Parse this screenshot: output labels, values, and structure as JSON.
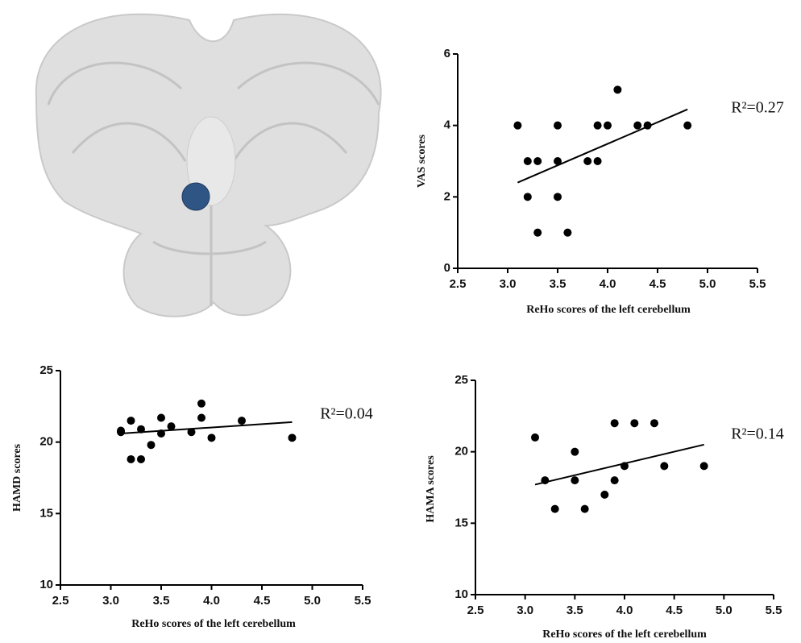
{
  "chart_data": [
    {
      "type": "scatter",
      "x_label": "ReHo scores of the left cerebellum",
      "y_label": "VAS scores",
      "annotation": "R²=0.27",
      "x": [
        3.1,
        3.2,
        3.2,
        3.3,
        3.3,
        3.5,
        3.5,
        3.5,
        3.6,
        3.8,
        3.9,
        3.9,
        4.0,
        4.1,
        4.3,
        4.4,
        4.8
      ],
      "values": [
        4,
        3,
        2,
        3,
        1,
        4,
        3,
        2,
        1,
        3,
        4,
        3,
        4,
        5,
        4,
        4,
        4
      ],
      "fit_line": {
        "x": [
          3.1,
          4.8
        ],
        "y": [
          2.4,
          4.45
        ]
      },
      "color": "#000000",
      "xlim": [
        2.5,
        5.5
      ],
      "xticks": [
        2.5,
        {
          "value": 3,
          "label": "3.0"
        },
        3.5,
        {
          "value": 4,
          "label": "4.0"
        },
        4.5,
        {
          "value": 5,
          "label": "5.0"
        },
        5.5
      ],
      "ylim": [
        0,
        6
      ],
      "yticks": [
        0,
        2,
        4,
        6
      ]
    },
    {
      "type": "scatter",
      "x_label": "ReHo scores of the left cerebellum",
      "y_label": "HAMD scores",
      "annotation": "R²=0.04",
      "x": [
        3.1,
        3.1,
        3.2,
        3.2,
        3.3,
        3.3,
        3.4,
        3.5,
        3.5,
        3.6,
        3.8,
        3.9,
        3.9,
        4.0,
        4.3,
        4.8
      ],
      "values": [
        20.8,
        20.7,
        21.5,
        18.8,
        20.9,
        18.8,
        19.8,
        21.7,
        20.6,
        21.1,
        20.7,
        22.7,
        21.7,
        20.3,
        21.5,
        20.3
      ],
      "fit_line": {
        "x": [
          3.1,
          4.8
        ],
        "y": [
          20.6,
          21.4
        ]
      },
      "color": "#000000",
      "xlim": [
        2.5,
        5.5
      ],
      "xticks": [
        2.5,
        {
          "value": 3,
          "label": "3.0"
        },
        3.5,
        {
          "value": 4,
          "label": "4.0"
        },
        4.5,
        {
          "value": 5,
          "label": "5.0"
        },
        5.5
      ],
      "ylim": [
        10,
        25
      ],
      "yticks": [
        10,
        15,
        20,
        25
      ]
    },
    {
      "type": "scatter",
      "x_label": "ReHo scores of the left cerebellum",
      "y_label": "HAMA scores",
      "annotation": "R²=0.14",
      "x": [
        3.1,
        3.2,
        3.3,
        3.5,
        3.5,
        3.6,
        3.8,
        3.9,
        3.9,
        4.0,
        4.1,
        4.3,
        4.4,
        4.8
      ],
      "values": [
        21,
        18,
        16,
        20,
        18,
        16,
        17,
        22,
        18,
        19,
        22,
        22,
        19,
        19
      ],
      "fit_line": {
        "x": [
          3.1,
          4.8
        ],
        "y": [
          17.7,
          20.5
        ]
      },
      "color": "#000000",
      "xlim": [
        2.5,
        5.5
      ],
      "xticks": [
        2.5,
        {
          "value": 3,
          "label": "3.0"
        },
        3.5,
        {
          "value": 4,
          "label": "4.0"
        },
        4.5,
        {
          "value": 5,
          "label": "5.0"
        },
        5.5
      ],
      "ylim": [
        10,
        25
      ],
      "yticks": [
        10,
        15,
        20,
        25
      ]
    }
  ]
}
